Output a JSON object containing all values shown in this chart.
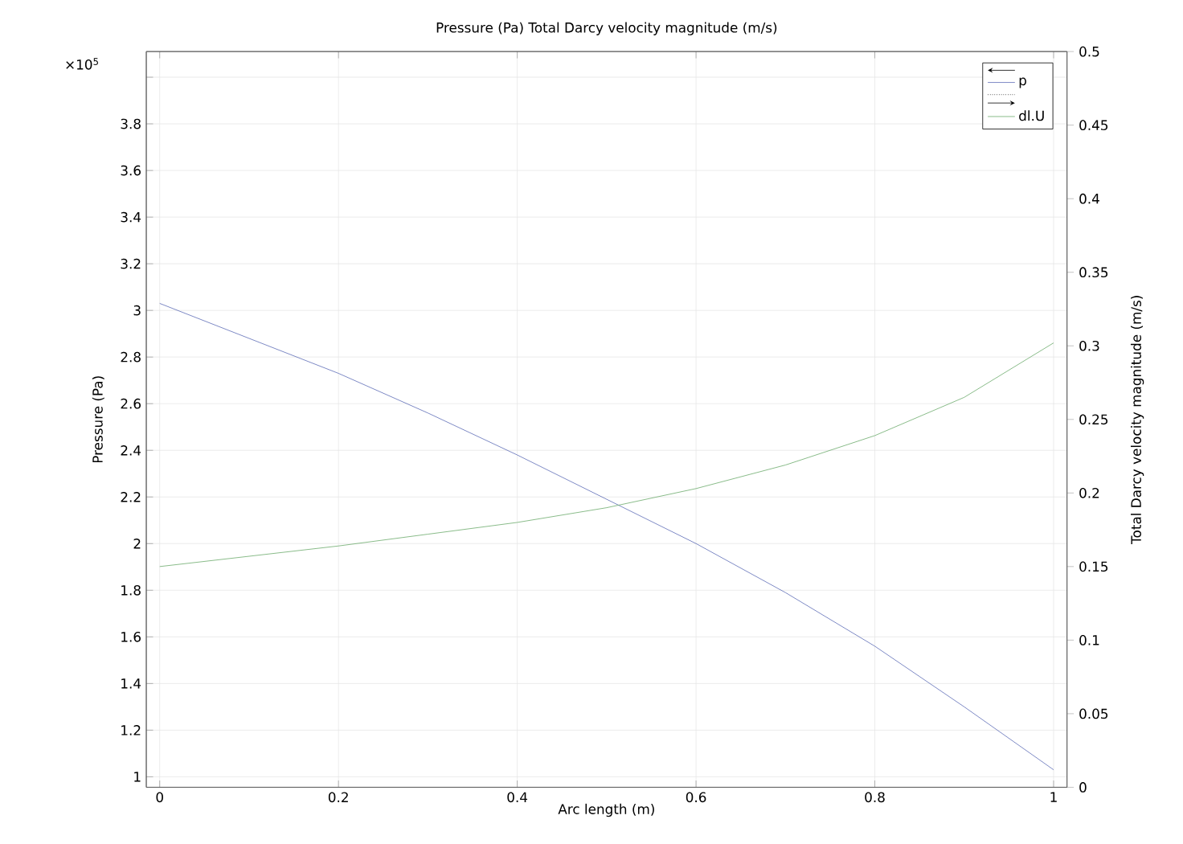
{
  "chart_data": {
    "type": "line",
    "title": "Pressure (Pa)  Total Darcy velocity magnitude (m/s)",
    "xlabel": "Arc length (m)",
    "ylabel": "Pressure (Pa)",
    "y2label": "Total Darcy velocity magnitude (m/s)",
    "annotations": [
      "×10$^{5}$"
    ],
    "x": [
      0,
      0.1,
      0.2,
      0.3,
      0.4,
      0.5,
      0.6,
      0.7,
      0.8,
      0.9,
      1.0
    ],
    "series": [
      {
        "name": "p",
        "color": "#5b6bb5",
        "values": [
          3.03,
          2.88,
          2.73,
          2.56,
          2.38,
          2.19,
          2.0,
          1.79,
          1.56,
          1.3,
          1.03
        ]
      },
      {
        "name": "dl.U",
        "color": "#6aaa6a",
        "axis": "y2",
        "values": [
          0.15,
          0.157,
          0.164,
          0.172,
          0.18,
          0.19,
          0.203,
          0.219,
          0.239,
          0.265,
          0.302
        ]
      }
    ],
    "xlim": [
      -0.015,
      1.015
    ],
    "ylim": [
      0.955,
      4.11
    ],
    "y2lim": [
      0,
      0.5
    ],
    "xticks": [
      0,
      0.2,
      0.4,
      0.6,
      0.8,
      1
    ],
    "yticks": [
      1,
      1.2,
      1.4,
      1.6,
      1.8,
      2,
      2.2,
      2.4,
      2.6,
      2.8,
      3,
      3.2,
      3.4,
      3.6,
      3.8,
      {
        "value": 4,
        "label": null
      }
    ],
    "y2ticks": [
      0,
      0.05,
      0.1,
      0.15,
      0.2,
      0.25,
      0.3,
      0.35,
      0.4,
      0.45,
      0.5
    ],
    "grid": true,
    "legend": "top right",
    "marker": "none",
    "line_style": "solid"
  }
}
